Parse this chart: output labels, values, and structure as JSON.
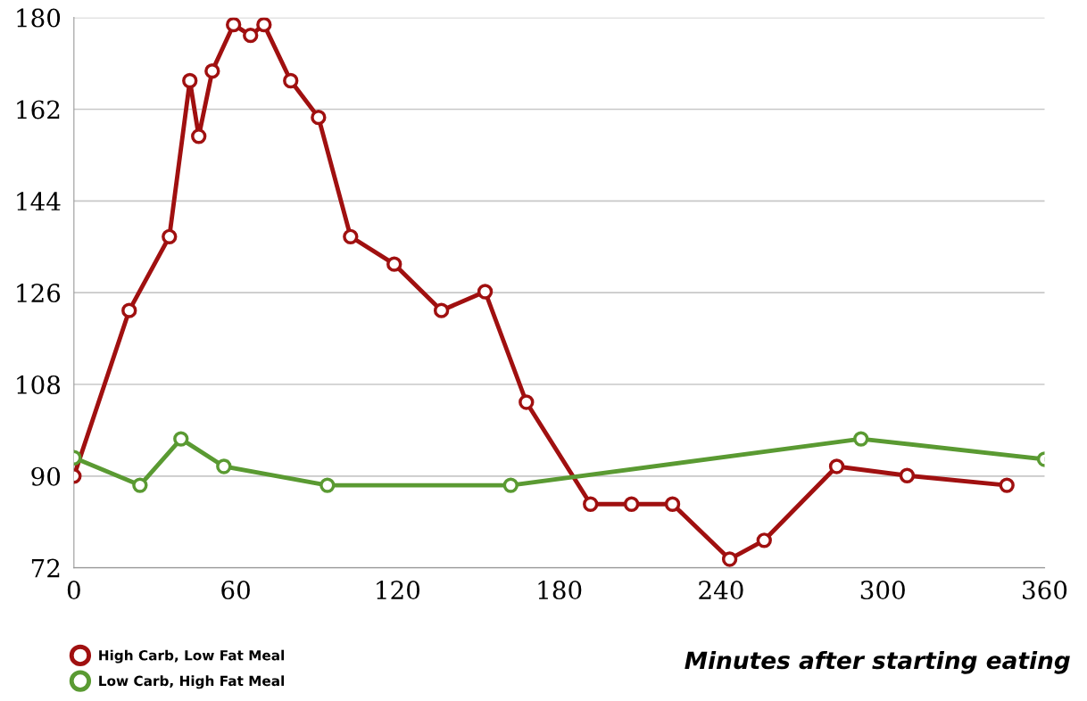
{
  "chart_data": {
    "type": "line",
    "xlabel": "Minutes after starting eating",
    "xlim": [
      0,
      360
    ],
    "xticks": [
      0,
      60,
      120,
      180,
      240,
      300,
      360
    ],
    "ylim": [
      72,
      180
    ],
    "yticks": [
      72,
      90,
      108,
      126,
      144,
      162,
      180
    ],
    "grid": "y",
    "legend": "bottom left",
    "marker": "circle",
    "line_style": "solid",
    "series": [
      {
        "name": "High Carb, Low Fat Meal",
        "color": "#a01010",
        "x": [
          0,
          20.5,
          35.4,
          43,
          46.3,
          51.3,
          59.2,
          65.5,
          70.5,
          80.4,
          90.7,
          102.6,
          118.8,
          136.3,
          152.5,
          167.8,
          191.6,
          206.8,
          222,
          243.2,
          256,
          282.9,
          309,
          346
        ],
        "values": [
          90,
          122.5,
          137,
          167.6,
          156.7,
          169.5,
          178.6,
          176.5,
          178.6,
          167.6,
          160.4,
          137,
          131.6,
          122.5,
          126.2,
          104.5,
          84.5,
          84.5,
          84.5,
          73.7,
          77.4,
          91.9,
          90.1,
          88.2
        ]
      },
      {
        "name": "Low Carb, High Fat Meal",
        "color": "#5a9a32",
        "x": [
          0,
          24.5,
          39.7,
          55.6,
          94,
          162,
          291.9,
          360
        ],
        "values": [
          93.6,
          88.2,
          97.3,
          91.9,
          88.2,
          88.2,
          97.3,
          93.3
        ]
      }
    ]
  }
}
